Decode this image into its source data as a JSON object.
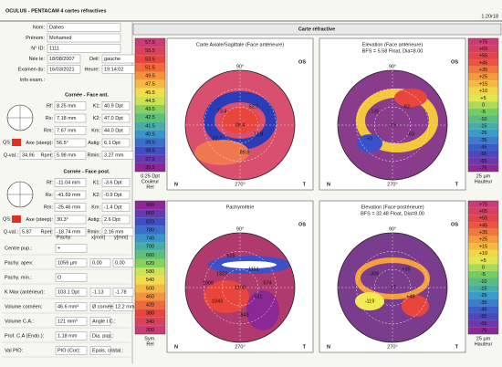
{
  "header": {
    "title": "OCULUS - PENTACAM   4 cartes réfractives",
    "version": "1.20r18"
  },
  "patient": {
    "rows": [
      [
        "Nom:",
        "Dahes"
      ],
      [
        "Prénom:",
        "Mohamed"
      ],
      [
        "N° ID:",
        "1111"
      ],
      [
        "Née le:",
        "18/08/2007",
        "Oeil:",
        "gauche"
      ],
      [
        "Examen du:",
        "16/03/2021",
        "Heure:",
        "19:14:02"
      ],
      [
        "Info exam.:"
      ]
    ]
  },
  "front": {
    "title": "Cornée - Face ant.",
    "qs": "QS:",
    "rows": [
      [
        "Rf:",
        "8.25 mm",
        "K1:",
        "40.9 Dpt"
      ],
      [
        "Rs:",
        "7.18 mm",
        "K2:",
        "47.0 Dpt"
      ],
      [
        "Rm:",
        "7.67 mm",
        "Km:",
        "44.0 Dpt"
      ],
      [
        "Axe (steep):",
        "56.5°",
        "Astig:",
        "6.1 Dpt"
      ],
      [
        "Q-val.:",
        "34.96",
        "Rper:",
        "5.98 mm",
        "Rmin:",
        "3.27 mm"
      ]
    ]
  },
  "back": {
    "title": "Cornée - Face post.",
    "qs": "QS:",
    "rows": [
      [
        "Rf:",
        "-11.04 mm",
        "K1:",
        "-3.6 Dpt"
      ],
      [
        "Rs:",
        "-41.69 mm",
        "K2:",
        "-0.9 Dpt"
      ],
      [
        "Rm:",
        "-25.46 mm",
        "Km:",
        "-1.4 Dpt"
      ],
      [
        "Axe (steep):",
        "30.3°",
        "Astig:",
        "2.6 Dpt"
      ],
      [
        "Q-val.:",
        "5.87",
        "Rper:",
        "-18.74 mm",
        "Rmin:",
        "2.16 mm"
      ]
    ]
  },
  "pachy": {
    "header": [
      "Pachy:",
      "x[mm]",
      "y[mm]"
    ],
    "rows": [
      [
        "Centre pup.:",
        "+"
      ],
      [
        "Pachy. apex:",
        "1059 µm",
        "0.00",
        "0.00"
      ],
      [
        "Pachy. min.:",
        "O"
      ],
      [
        "K Max (antérieur):",
        "103.1 Dpt",
        "-1.13",
        "-1.78"
      ],
      [
        "Volume cornéen:",
        "46.6 mm³",
        "Ø cornée:",
        "12.2 mm"
      ],
      [
        "Volume C.A.:",
        "121 mm³",
        "Angle I.C.:"
      ],
      [
        "Prof. C.A (Endo.):",
        "1.18 mm",
        "Dia. pup.:"
      ],
      [
        "Val PIO:",
        "PIO (Cor):",
        "Epais. cristal.:"
      ]
    ]
  },
  "maps": {
    "title": "Carte réfractive",
    "panels": [
      {
        "title": "Carte Axiale/Sagittale (Face antérieure)",
        "eye": "OS",
        "top": "90°",
        "bottom": "270°",
        "left": "N",
        "right": "T",
        "numbers": [
          "73.4",
          "52.7",
          "38.4",
          "72.7",
          "71.8",
          "89.8"
        ]
      },
      {
        "title": "Elevation (Face antérieure)",
        "subtitle": "BFS = 5.58 Float, Dia=8.00",
        "eye": "OS",
        "top": "90°",
        "bottom": "270°",
        "left": "N",
        "right": "T",
        "numbers": [
          "-135",
          "-52",
          "-15",
          "+2",
          "-63"
        ]
      },
      {
        "title": "Pachymétrie",
        "eye": "OS",
        "top": "90°",
        "bottom": "270°",
        "left": "N",
        "right": "T",
        "numbers": [
          "1323",
          "1151",
          "1108",
          "1043",
          "911",
          "843",
          "625",
          "574",
          "1009"
        ]
      },
      {
        "title": "Elevation (Face postérieure)",
        "subtitle": "BFS = 32.48 Float, Dia=8.00",
        "eye": "OS",
        "top": "90°",
        "bottom": "270°",
        "left": "N",
        "right": "T",
        "numbers": [
          "-306",
          "+35",
          "-17",
          "-119",
          "+48"
        ]
      }
    ],
    "scales": [
      {
        "labels": [
          "57.5",
          "55.5",
          "53.5",
          "51.5",
          "49.5",
          "47.5",
          "45.5",
          "44.5",
          "43.5",
          "42.5",
          "41.5",
          "40.5",
          "39.5",
          "38.5",
          "37.5",
          "35.5"
        ],
        "footer": [
          "0.25 Dpt",
          "Couleur",
          "Rel"
        ],
        "palette": [
          "#c83c78",
          "#e8463c",
          "#f5a03c",
          "#f0eb50",
          "#64c864",
          "#3ca0c8",
          "#3c50c8",
          "#8c2896"
        ]
      },
      {
        "labels": [
          "+75",
          "+65",
          "+55",
          "+45",
          "+35",
          "+25",
          "+15",
          "+10",
          "+5",
          "0",
          "-5",
          "-10",
          "-15",
          "-25",
          "-35",
          "-45",
          "-55",
          "-65",
          "-75"
        ],
        "footer": [
          "25 µm",
          "Hauteur"
        ],
        "palette": [
          "#c83c78",
          "#e8463c",
          "#f5a03c",
          "#f0eb50",
          "#64c864",
          "#3ca0c8",
          "#3c50c8",
          "#8c2896"
        ]
      },
      {
        "labels": [
          "900",
          "860",
          "820",
          "780",
          "740",
          "700",
          "660",
          "620",
          "580",
          "540",
          "500",
          "460",
          "420",
          "380",
          "340",
          "300"
        ],
        "footer": [
          "Sym.",
          "Rel"
        ],
        "palette": [
          "#8c2896",
          "#3c50c8",
          "#3ca0c8",
          "#64c864",
          "#f0eb50",
          "#f5a03c",
          "#e8463c",
          "#c83c78"
        ]
      },
      {
        "labels": [
          "+75",
          "+65",
          "+55",
          "+45",
          "+35",
          "+25",
          "+15",
          "+10",
          "+5",
          "0",
          "-5",
          "-10",
          "-15",
          "-25",
          "-35",
          "-45",
          "-55",
          "-65",
          "-75"
        ],
        "footer": [
          "25 µm",
          "Hauteur"
        ],
        "palette": [
          "#c83c78",
          "#e8463c",
          "#f5a03c",
          "#f0eb50",
          "#64c864",
          "#3ca0c8",
          "#3c50c8",
          "#8c2896"
        ]
      }
    ]
  }
}
